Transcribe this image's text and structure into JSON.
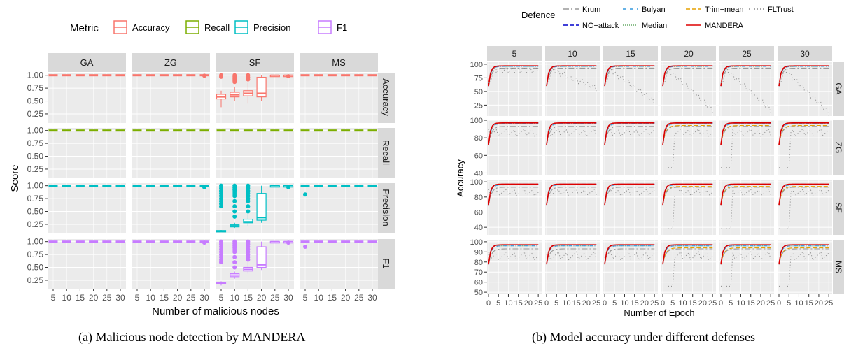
{
  "captions": {
    "a": "(a) Malicious node detection by MANDERA",
    "b": "(b) Model accuracy under different defenses"
  },
  "colors": {
    "panel_bg": "#ebebeb",
    "strip_bg": "#d9d9d9",
    "grid": "#ffffff"
  },
  "chart_data": [
    {
      "type": "box",
      "legend_title": "Metric",
      "legend_position": "top",
      "xlabel": "Number of malicious nodes",
      "ylabel": "Score",
      "attacks": [
        "GA",
        "ZG",
        "SF",
        "MS"
      ],
      "metrics": [
        {
          "name": "Accuracy",
          "color": "#F8766D"
        },
        {
          "name": "Recall",
          "color": "#7CAE00"
        },
        {
          "name": "Precision",
          "color": "#00BFC4"
        },
        {
          "name": "F1",
          "color": "#C77CFF"
        }
      ],
      "x": [
        5,
        10,
        15,
        20,
        25,
        30
      ],
      "x_tick_labels": [
        "5",
        "10",
        "15",
        "20",
        "25",
        "30"
      ],
      "y_ticks": [
        "0.25",
        "0.50",
        "0.75",
        "1.00"
      ],
      "ylim": [
        0.1,
        1.05
      ],
      "boxes": {
        "SF": {
          "Accuracy": [
            {
              "x": 5,
              "min": 0.38,
              "q1": 0.54,
              "median": 0.58,
              "q3": 0.63,
              "max": 0.7,
              "outliers": [
                1.0,
                0.97
              ]
            },
            {
              "x": 10,
              "min": 0.5,
              "q1": 0.58,
              "median": 0.62,
              "q3": 0.67,
              "max": 0.78,
              "outliers": [
                1.0,
                0.97,
                0.93,
                0.9,
                0.87
              ]
            },
            {
              "x": 15,
              "min": 0.45,
              "q1": 0.6,
              "median": 0.65,
              "q3": 0.7,
              "max": 0.85,
              "outliers": [
                1.0,
                0.96,
                0.92
              ]
            },
            {
              "x": 20,
              "min": 0.5,
              "q1": 0.58,
              "median": 0.65,
              "q3": 0.96,
              "max": 1.0,
              "outliers": []
            },
            {
              "x": 25,
              "min": 1.0,
              "q1": 1.0,
              "median": 1.0,
              "q3": 1.0,
              "max": 1.0,
              "outliers": []
            },
            {
              "x": 30,
              "min": 1.0,
              "q1": 1.0,
              "median": 1.0,
              "q3": 1.0,
              "max": 1.0,
              "outliers": [
                0.98
              ]
            }
          ],
          "Precision": [
            {
              "x": 5,
              "min": 0.1,
              "q1": 0.11,
              "median": 0.12,
              "q3": 0.13,
              "max": 0.14,
              "outliers": [
                1.0,
                0.95,
                0.9,
                0.85,
                0.8,
                0.75,
                0.7,
                0.65,
                0.6
              ]
            },
            {
              "x": 10,
              "min": 0.18,
              "q1": 0.2,
              "median": 0.22,
              "q3": 0.24,
              "max": 0.28,
              "outliers": [
                1.0,
                0.96,
                0.92,
                0.88,
                0.84,
                0.8,
                0.7,
                0.6,
                0.5,
                0.4
              ]
            },
            {
              "x": 15,
              "min": 0.22,
              "q1": 0.28,
              "median": 0.3,
              "q3": 0.35,
              "max": 0.45,
              "outliers": [
                1.0,
                0.95,
                0.9,
                0.85,
                0.8,
                0.75,
                0.7,
                0.6,
                0.5
              ]
            },
            {
              "x": 20,
              "min": 0.28,
              "q1": 0.33,
              "median": 0.38,
              "q3": 0.85,
              "max": 1.0,
              "outliers": []
            },
            {
              "x": 25,
              "min": 1.0,
              "q1": 1.0,
              "median": 1.0,
              "q3": 1.0,
              "max": 1.0,
              "outliers": []
            },
            {
              "x": 30,
              "min": 1.0,
              "q1": 1.0,
              "median": 1.0,
              "q3": 1.0,
              "max": 1.0,
              "outliers": [
                0.97
              ]
            }
          ],
          "F1": [
            {
              "x": 5,
              "min": 0.15,
              "q1": 0.18,
              "median": 0.19,
              "q3": 0.21,
              "max": 0.23,
              "outliers": [
                1.0,
                0.95,
                0.9,
                0.85,
                0.8,
                0.75,
                0.7,
                0.65,
                0.6
              ]
            },
            {
              "x": 10,
              "min": 0.28,
              "q1": 0.32,
              "median": 0.35,
              "q3": 0.38,
              "max": 0.42,
              "outliers": [
                1.0,
                0.96,
                0.92,
                0.88,
                0.84,
                0.8,
                0.7,
                0.6,
                0.5
              ]
            },
            {
              "x": 15,
              "min": 0.38,
              "q1": 0.43,
              "median": 0.46,
              "q3": 0.5,
              "max": 0.6,
              "outliers": [
                1.0,
                0.95,
                0.9,
                0.85,
                0.8,
                0.75,
                0.7,
                0.65
              ]
            },
            {
              "x": 20,
              "min": 0.45,
              "q1": 0.5,
              "median": 0.55,
              "q3": 0.9,
              "max": 1.0,
              "outliers": []
            },
            {
              "x": 25,
              "min": 1.0,
              "q1": 1.0,
              "median": 1.0,
              "q3": 1.0,
              "max": 1.0,
              "outliers": []
            },
            {
              "x": 30,
              "min": 1.0,
              "q1": 1.0,
              "median": 1.0,
              "q3": 1.0,
              "max": 1.0,
              "outliers": [
                0.98
              ]
            }
          ]
        },
        "ZG": {
          "Accuracy": [
            {
              "x": 30,
              "outliers": [
                0.99
              ]
            }
          ],
          "Precision": [
            {
              "x": 30,
              "outliers": [
                0.97
              ]
            }
          ],
          "F1": [
            {
              "x": 30,
              "outliers": [
                0.98
              ]
            }
          ]
        },
        "MS": {
          "Precision": [
            {
              "x": 5,
              "outliers": [
                0.83
              ]
            }
          ],
          "F1": [
            {
              "x": 5,
              "outliers": [
                0.9
              ]
            }
          ]
        },
        "default_value": 1.0
      }
    },
    {
      "type": "line",
      "legend_title": "Defence",
      "legend_position": "top",
      "xlabel": "Number of Epoch",
      "ylabel": "Accuracy",
      "columns": [
        "5",
        "10",
        "15",
        "20",
        "25",
        "30"
      ],
      "rows": [
        "GA",
        "ZG",
        "SF",
        "MS"
      ],
      "x_ticks": [
        0,
        5,
        10,
        15,
        20,
        25
      ],
      "x_tick_labels": [
        "0",
        "5",
        "10",
        "15",
        "20",
        "25"
      ],
      "xlim": [
        0,
        26
      ],
      "row_ylims": {
        "GA": [
          5,
          105
        ],
        "ZG": [
          38,
          100
        ],
        "SF": [
          30,
          102
        ],
        "MS": [
          48,
          102
        ]
      },
      "row_yticks": {
        "GA": [
          "25",
          "50",
          "75",
          "100"
        ],
        "ZG": [
          "40",
          "60",
          "80",
          "100"
        ],
        "SF": [
          "40",
          "60",
          "80",
          "100"
        ],
        "MS": [
          "50",
          "60",
          "70",
          "80",
          "90",
          "100"
        ]
      },
      "series": [
        {
          "name": "Krum",
          "color": "#999999",
          "dash": "8,3,2,3"
        },
        {
          "name": "NO−attack",
          "color": "#0000CC",
          "dash": "6,3"
        },
        {
          "name": "Bulyan",
          "color": "#3399DD",
          "dash": "5,2,1,2"
        },
        {
          "name": "Median",
          "color": "#66AA66",
          "dash": "1,2"
        },
        {
          "name": "Trim−mean",
          "color": "#E6A000",
          "dash": "6,3"
        },
        {
          "name": "MANDERA",
          "color": "#DD0000",
          "dash": ""
        },
        {
          "name": "FLTrust",
          "color": "#888888",
          "dash": "1,3"
        }
      ],
      "series_final_values": {
        "MANDERA": 97,
        "NO−attack": 97,
        "Krum": 93,
        "Bulyan": 96,
        "Median": 96,
        "Trim−mean": 96,
        "FLTrust": 90
      },
      "fltrust_trend_GA": {
        "5": 88,
        "10": 55,
        "15": 30,
        "20": 15,
        "25": 15,
        "30": 10
      }
    }
  ]
}
